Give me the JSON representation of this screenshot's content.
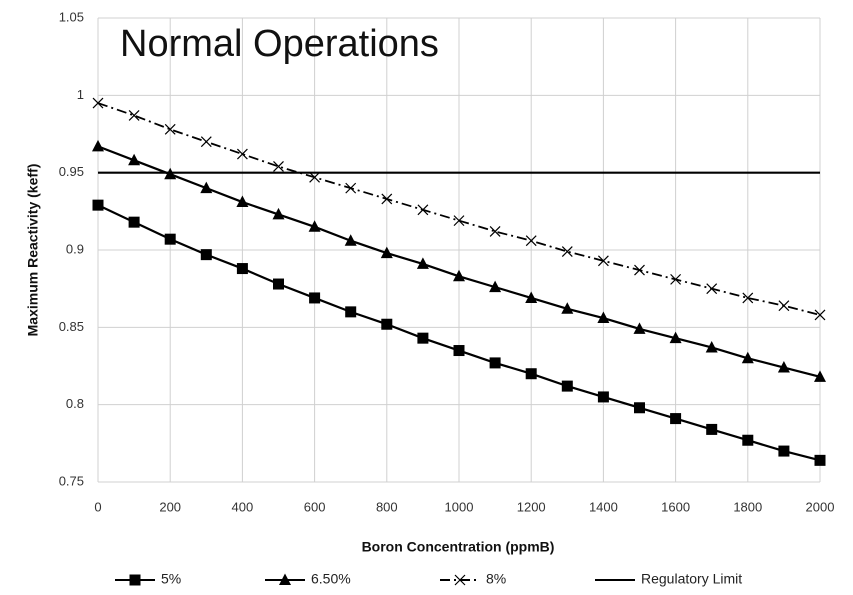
{
  "chart_data": {
    "type": "line",
    "title": "Normal Operations",
    "x_label": "Boron Concentration (ppmB)",
    "y_label": "Maximum Reactivity (keff)",
    "x": [
      0,
      100,
      200,
      300,
      400,
      500,
      600,
      700,
      800,
      900,
      1000,
      1100,
      1200,
      1300,
      1400,
      1500,
      1600,
      1700,
      1800,
      1900,
      2000
    ],
    "series": [
      {
        "name": "5%",
        "color": "#000000",
        "marker": "square",
        "dash": "solid",
        "values": [
          0.929,
          0.918,
          0.907,
          0.897,
          0.888,
          0.878,
          0.869,
          0.86,
          0.852,
          0.843,
          0.835,
          0.827,
          0.82,
          0.812,
          0.805,
          0.798,
          0.791,
          0.784,
          0.777,
          0.77,
          0.764
        ]
      },
      {
        "name": "6.50%",
        "color": "#000000",
        "marker": "triangle",
        "dash": "solid",
        "values": [
          0.967,
          0.958,
          0.949,
          0.94,
          0.931,
          0.923,
          0.915,
          0.906,
          0.898,
          0.891,
          0.883,
          0.876,
          0.869,
          0.862,
          0.856,
          0.849,
          0.843,
          0.837,
          0.83,
          0.824,
          0.818
        ]
      },
      {
        "name": "8%",
        "color": "#000000",
        "marker": "x",
        "dash": "dashdot",
        "values": [
          0.995,
          0.987,
          0.978,
          0.97,
          0.962,
          0.954,
          0.947,
          0.94,
          0.933,
          0.926,
          0.919,
          0.912,
          0.906,
          0.899,
          0.893,
          0.887,
          0.881,
          0.875,
          0.869,
          0.864,
          0.858
        ]
      },
      {
        "name": "Regulatory Limit",
        "color": "#000000",
        "marker": "none",
        "dash": "solid",
        "x": [
          0,
          2000
        ],
        "values": [
          0.95,
          0.95
        ]
      }
    ],
    "xlim": [
      0,
      2000
    ],
    "xticks": [
      0,
      200,
      400,
      600,
      800,
      1000,
      1200,
      1400,
      1600,
      1800,
      2000
    ],
    "ylim": [
      0.75,
      1.05
    ],
    "yticks": [
      0.75,
      0.8,
      0.85,
      0.9,
      0.95,
      1,
      1.05
    ],
    "grid": true,
    "legend": "bottom"
  }
}
